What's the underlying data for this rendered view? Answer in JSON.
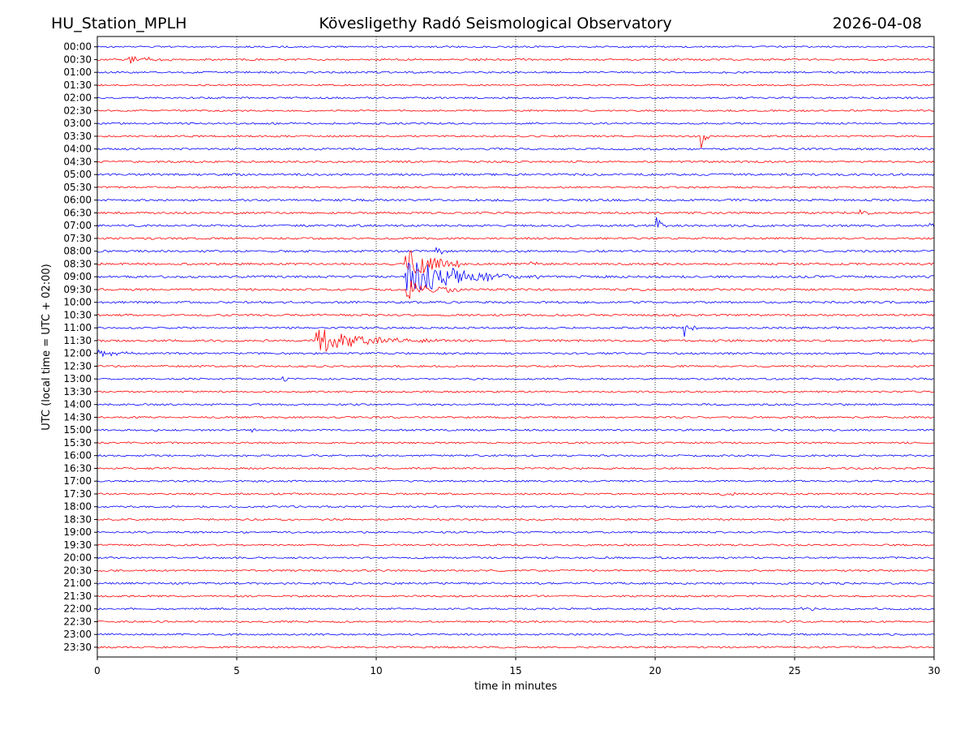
{
  "header": {
    "station": "HU_Station_MPLH",
    "observatory": "Kövesligethy Radó Seismological Observatory",
    "date": "2026-04-08"
  },
  "chart_data": {
    "type": "line",
    "title": "Kövesligethy Radó Seismological Observatory",
    "xlabel": "time in minutes",
    "ylabel": "UTC (local time = UTC + 02:00)",
    "xlim": [
      0,
      30
    ],
    "xticks": [
      0,
      5,
      10,
      15,
      20,
      25,
      30
    ],
    "grid_x": true,
    "colors": {
      "even_row": "#0000ff",
      "odd_row": "#ff0000"
    },
    "rows": [
      {
        "label": "00:00",
        "noise": 0.9
      },
      {
        "label": "00:30",
        "noise": 1.0
      },
      {
        "label": "01:00",
        "noise": 1.0
      },
      {
        "label": "01:30",
        "noise": 0.9
      },
      {
        "label": "02:00",
        "noise": 1.0
      },
      {
        "label": "02:30",
        "noise": 0.9
      },
      {
        "label": "03:00",
        "noise": 1.0
      },
      {
        "label": "03:30",
        "noise": 1.0
      },
      {
        "label": "04:00",
        "noise": 1.1
      },
      {
        "label": "04:30",
        "noise": 1.1
      },
      {
        "label": "05:00",
        "noise": 1.2
      },
      {
        "label": "05:30",
        "noise": 1.0
      },
      {
        "label": "06:00",
        "noise": 1.2
      },
      {
        "label": "06:30",
        "noise": 1.1
      },
      {
        "label": "07:00",
        "noise": 1.2
      },
      {
        "label": "07:30",
        "noise": 1.1
      },
      {
        "label": "08:00",
        "noise": 1.2
      },
      {
        "label": "08:30",
        "noise": 1.2
      },
      {
        "label": "09:00",
        "noise": 1.3
      },
      {
        "label": "09:30",
        "noise": 1.2
      },
      {
        "label": "10:00",
        "noise": 1.2
      },
      {
        "label": "10:30",
        "noise": 1.1
      },
      {
        "label": "11:00",
        "noise": 1.1
      },
      {
        "label": "11:30",
        "noise": 1.2
      },
      {
        "label": "12:00",
        "noise": 1.1
      },
      {
        "label": "12:30",
        "noise": 1.0
      },
      {
        "label": "13:00",
        "noise": 1.0
      },
      {
        "label": "13:30",
        "noise": 1.0
      },
      {
        "label": "14:00",
        "noise": 1.0
      },
      {
        "label": "14:30",
        "noise": 1.0
      },
      {
        "label": "15:00",
        "noise": 1.0
      },
      {
        "label": "15:30",
        "noise": 1.0
      },
      {
        "label": "16:00",
        "noise": 1.0
      },
      {
        "label": "16:30",
        "noise": 1.0
      },
      {
        "label": "17:00",
        "noise": 1.0
      },
      {
        "label": "17:30",
        "noise": 1.0
      },
      {
        "label": "18:00",
        "noise": 1.0
      },
      {
        "label": "18:30",
        "noise": 1.0
      },
      {
        "label": "19:00",
        "noise": 1.0
      },
      {
        "label": "19:30",
        "noise": 1.0
      },
      {
        "label": "20:00",
        "noise": 1.0
      },
      {
        "label": "20:30",
        "noise": 1.0
      },
      {
        "label": "21:00",
        "noise": 1.1
      },
      {
        "label": "21:30",
        "noise": 1.0
      },
      {
        "label": "22:00",
        "noise": 1.0
      },
      {
        "label": "22:30",
        "noise": 1.0
      },
      {
        "label": "23:00",
        "noise": 1.0
      },
      {
        "label": "23:30",
        "noise": 1.0
      }
    ],
    "events": [
      {
        "row": 1,
        "start": 1.1,
        "duration": 2.4,
        "amp": 5,
        "decay": 0.8
      },
      {
        "row": 7,
        "start": 21.6,
        "duration": 0.4,
        "amp": 22,
        "decay": 0.15
      },
      {
        "row": 13,
        "start": 27.3,
        "duration": 0.8,
        "amp": 4,
        "decay": 0.3
      },
      {
        "row": 14,
        "start": 20.0,
        "duration": 0.4,
        "amp": 20,
        "decay": 0.15
      },
      {
        "row": 14,
        "start": 29.8,
        "duration": 0.2,
        "amp": 8,
        "decay": 0.1
      },
      {
        "row": 15,
        "start": 1.8,
        "duration": 0.3,
        "amp": 4,
        "decay": 0.1
      },
      {
        "row": 16,
        "start": 12.1,
        "duration": 0.6,
        "amp": 6,
        "decay": 0.3
      },
      {
        "row": 17,
        "start": 11.0,
        "duration": 2.0,
        "amp": 22,
        "decay": 1.0
      },
      {
        "row": 17,
        "start": 15.5,
        "duration": 0.4,
        "amp": 4,
        "decay": 0.2
      },
      {
        "row": 18,
        "start": 11.0,
        "duration": 8.0,
        "amp": 30,
        "decay": 1.6
      },
      {
        "row": 19,
        "start": 11.0,
        "duration": 2.0,
        "amp": 14,
        "decay": 1.0
      },
      {
        "row": 22,
        "start": 21.0,
        "duration": 0.5,
        "amp": 14,
        "decay": 0.2
      },
      {
        "row": 23,
        "start": 7.8,
        "duration": 6.0,
        "amp": 18,
        "decay": 1.5
      },
      {
        "row": 24,
        "start": 0.0,
        "duration": 1.3,
        "amp": 6,
        "decay": 0.7
      },
      {
        "row": 26,
        "start": 6.6,
        "duration": 0.4,
        "amp": 5,
        "decay": 0.15
      },
      {
        "row": 30,
        "start": 5.5,
        "duration": 0.4,
        "amp": 3,
        "decay": 0.2
      },
      {
        "row": 35,
        "start": 22.3,
        "duration": 0.2,
        "amp": 8,
        "decay": 0.08
      },
      {
        "row": 35,
        "start": 22.7,
        "duration": 0.3,
        "amp": 14,
        "decay": 0.1
      },
      {
        "row": 44,
        "start": 25.2,
        "duration": 1.0,
        "amp": 3,
        "decay": 0.5
      }
    ]
  }
}
